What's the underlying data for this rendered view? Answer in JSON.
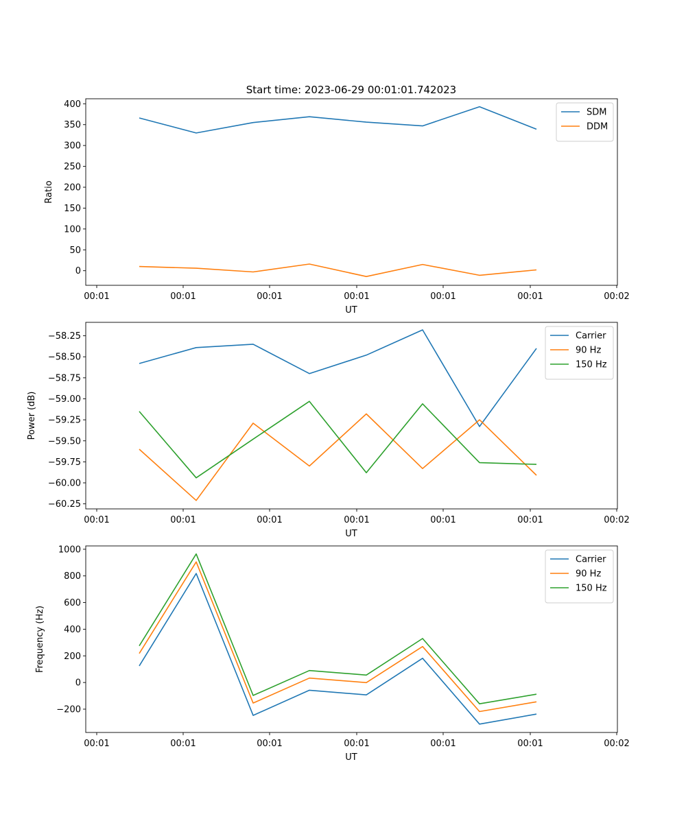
{
  "figure_title": "Start time: 2023-06-29 00:01:01.742023",
  "chart_data": [
    {
      "type": "line",
      "title": "Start time: 2023-06-29 00:01:01.742023",
      "xlabel": "UT",
      "ylabel": "Ratio",
      "x_tick_labels": [
        "00:01",
        "00:01",
        "00:01",
        "00:01",
        "00:01",
        "00:01",
        "00:02"
      ],
      "y_ticks": [
        0,
        50,
        100,
        150,
        200,
        250,
        300,
        350,
        400
      ],
      "y_tick_labels": [
        "0",
        "50",
        "100",
        "150",
        "200",
        "250",
        "300",
        "350",
        "400"
      ],
      "ylim": [
        -35,
        412
      ],
      "grid": false,
      "legend_position": "top-right",
      "series": [
        {
          "name": "SDM",
          "color": "#1f77b4",
          "values": [
            366,
            330,
            355,
            369,
            356,
            347,
            393,
            339
          ]
        },
        {
          "name": "DDM",
          "color": "#ff7f0e",
          "values": [
            10,
            6,
            -3,
            16,
            -14,
            15,
            -11,
            2
          ]
        }
      ]
    },
    {
      "type": "line",
      "title": "",
      "xlabel": "UT",
      "ylabel": "Power (dB)",
      "x_tick_labels": [
        "00:01",
        "00:01",
        "00:01",
        "00:01",
        "00:01",
        "00:01",
        "00:02"
      ],
      "y_ticks": [
        -60.25,
        -60.0,
        -59.75,
        -59.5,
        -59.25,
        -59.0,
        -58.75,
        -58.5,
        -58.25
      ],
      "y_tick_labels": [
        "−60.25",
        "−60.00",
        "−59.75",
        "−59.50",
        "−59.25",
        "−59.00",
        "−58.75",
        "−58.50",
        "−58.25"
      ],
      "ylim": [
        -60.31,
        -58.09
      ],
      "grid": false,
      "legend_position": "top-right",
      "series": [
        {
          "name": "Carrier",
          "color": "#1f77b4",
          "values": [
            -58.58,
            -58.39,
            -58.35,
            -58.7,
            -58.48,
            -58.18,
            -59.33,
            -58.4
          ]
        },
        {
          "name": "90 Hz",
          "color": "#ff7f0e",
          "values": [
            -59.6,
            -60.21,
            -59.29,
            -59.8,
            -59.18,
            -59.83,
            -59.25,
            -59.91
          ]
        },
        {
          "name": "150 Hz",
          "color": "#2ca02c",
          "values": [
            -59.15,
            -59.94,
            -59.48,
            -59.03,
            -59.88,
            -59.06,
            -59.76,
            -59.78
          ]
        }
      ]
    },
    {
      "type": "line",
      "title": "",
      "xlabel": "UT",
      "ylabel": "Frequency (Hz)",
      "x_tick_labels": [
        "00:01",
        "00:01",
        "00:01",
        "00:01",
        "00:01",
        "00:01",
        "00:02"
      ],
      "y_ticks": [
        -200,
        0,
        200,
        400,
        600,
        800,
        1000
      ],
      "y_tick_labels": [
        "−200",
        "0",
        "200",
        "400",
        "600",
        "800",
        "1000"
      ],
      "ylim": [
        -375,
        1025
      ],
      "grid": false,
      "legend_position": "top-right",
      "series": [
        {
          "name": "Carrier",
          "color": "#1f77b4",
          "values": [
            125,
            818,
            -247,
            -58,
            -93,
            182,
            -312,
            -237
          ]
        },
        {
          "name": "90 Hz",
          "color": "#ff7f0e",
          "values": [
            218,
            905,
            -154,
            33,
            -1,
            270,
            -218,
            -145
          ]
        },
        {
          "name": "150 Hz",
          "color": "#2ca02c",
          "values": [
            275,
            965,
            -97,
            90,
            56,
            330,
            -160,
            -88
          ]
        }
      ]
    }
  ]
}
